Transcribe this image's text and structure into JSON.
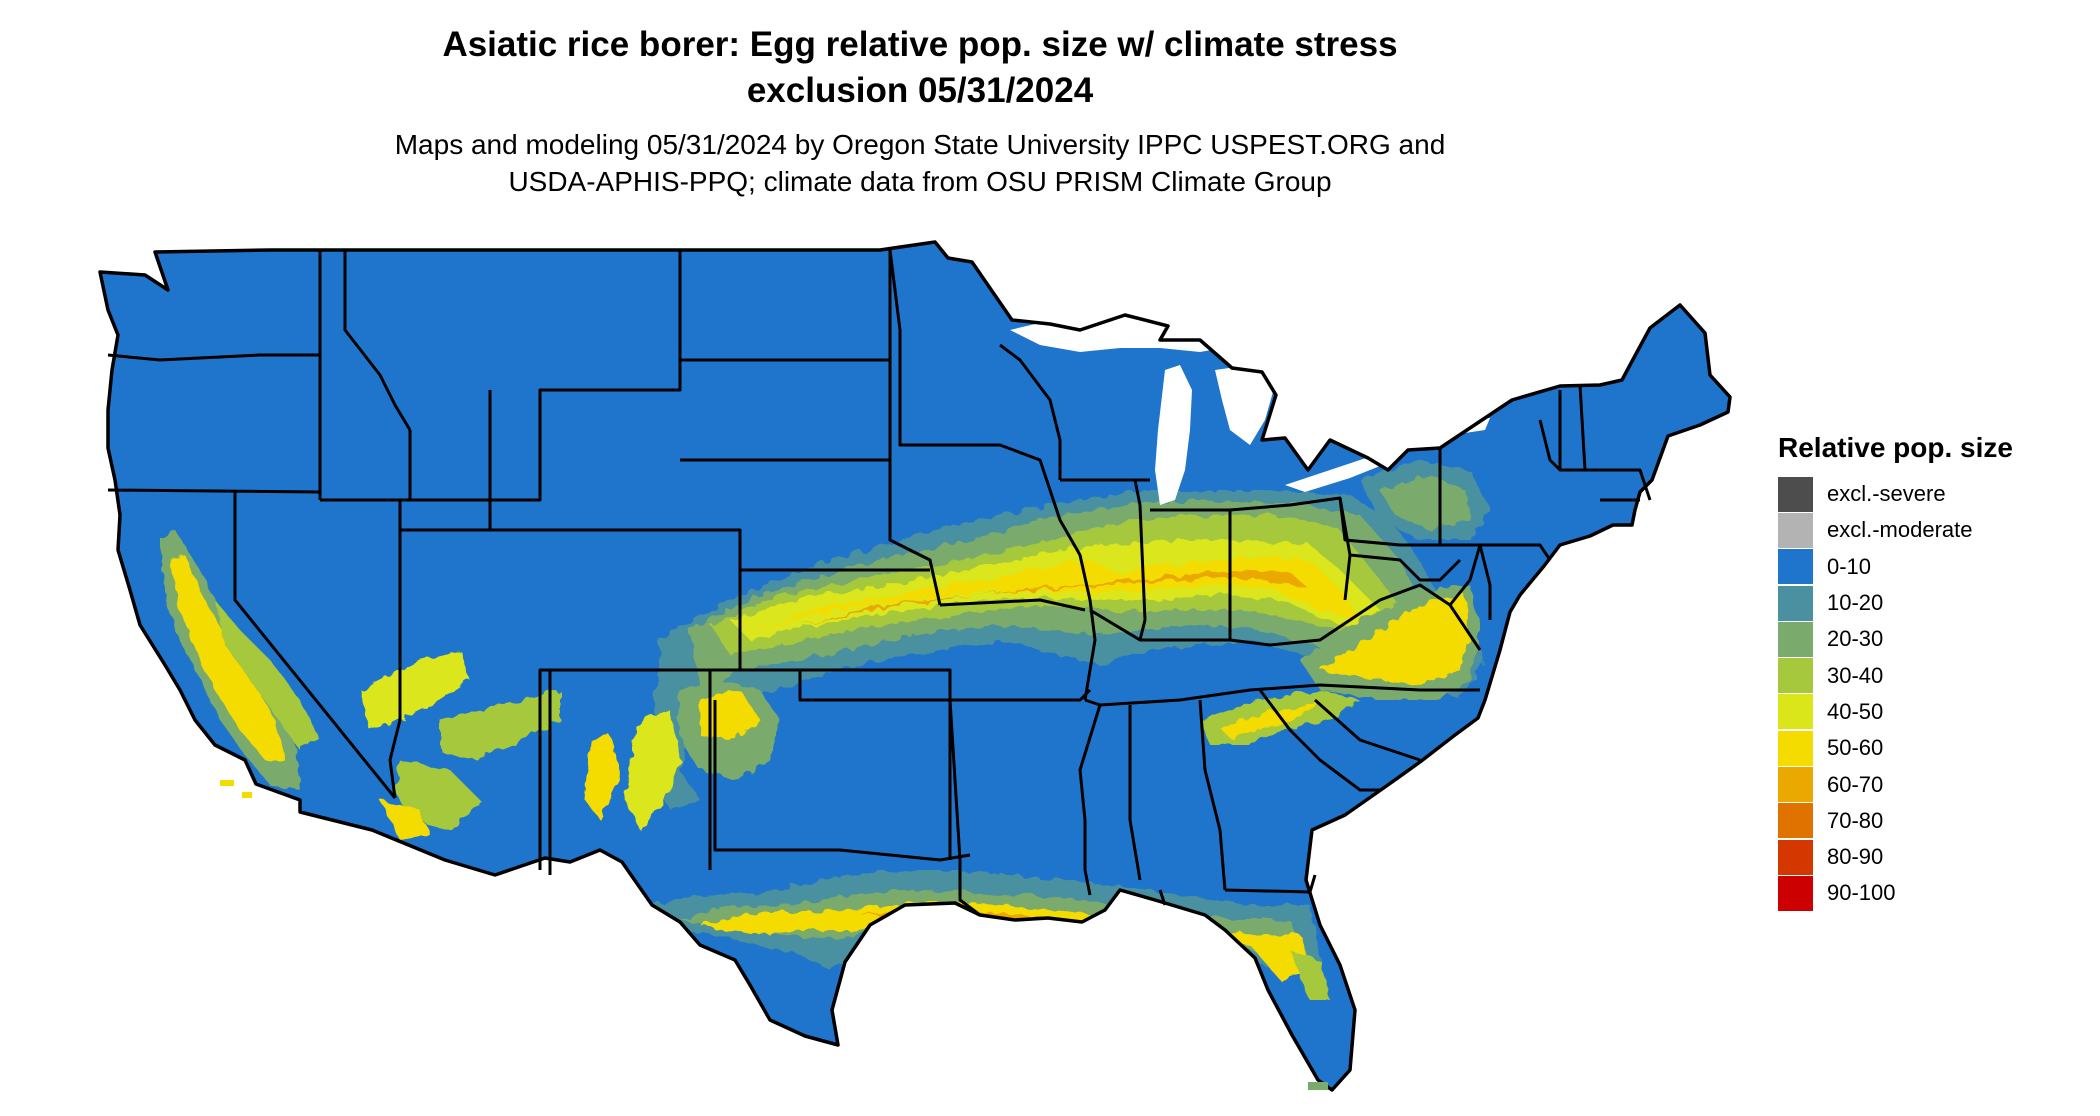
{
  "title": {
    "line1": "Asiatic rice borer: Egg relative pop. size w/ climate stress",
    "line2": "exclusion 05/31/2024"
  },
  "subtitle": {
    "line1": "Maps and modeling 05/31/2024 by Oregon State University IPPC USPEST.ORG and",
    "line2": "USDA-APHIS-PPQ; climate data from OSU PRISM Climate Group"
  },
  "legend": {
    "title": "Relative pop. size",
    "items": [
      {
        "label": "excl.-severe",
        "color": "#4d4d4d"
      },
      {
        "label": "excl.-moderate",
        "color": "#b3b3b3"
      },
      {
        "label": "0-10",
        "color": "#1f75cc"
      },
      {
        "label": "10-20",
        "color": "#4a90a0"
      },
      {
        "label": "20-30",
        "color": "#7aab6c"
      },
      {
        "label": "30-40",
        "color": "#a6c83c"
      },
      {
        "label": "40-50",
        "color": "#dbe61a"
      },
      {
        "label": "50-60",
        "color": "#f5dc00"
      },
      {
        "label": "60-70",
        "color": "#eaa800"
      },
      {
        "label": "70-80",
        "color": "#e07300"
      },
      {
        "label": "80-90",
        "color": "#d43800"
      },
      {
        "label": "90-100",
        "color": "#cc0000"
      }
    ]
  },
  "map": {
    "background_class": "0-10",
    "outline_color": "#000000"
  }
}
